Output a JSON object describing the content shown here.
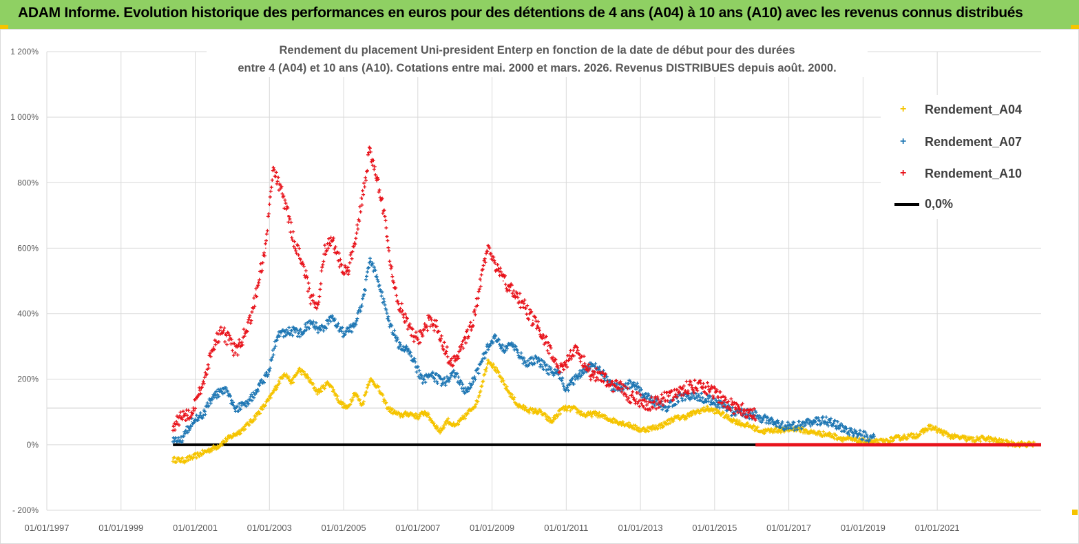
{
  "header": {
    "title": "ADAM Informe. Evolution historique des performances en euros pour des détentions de 4 ans (A04) à 10 ans (A10) avec les revenus connus distribués"
  },
  "colors": {
    "banner": "#8fd063",
    "series_a04": "#f5c400",
    "series_a07": "#1f77b4",
    "series_a10": "#e8141c",
    "zero_line": "#000000"
  },
  "chart_data": {
    "type": "scatter",
    "title_line1": "Rendement du placement Uni-president Enterp  en fonction de la date de début pour des durées",
    "title_line2": "entre 4 (A04) et 10 ans (A10). Cotations entre mai. 2000 et mars. 2026. Revenus DISTRIBUES depuis août. 2000.",
    "xlabel": "",
    "ylabel": "",
    "xlim": [
      1997.0,
      2023.8
    ],
    "ylim": [
      -200,
      1200
    ],
    "yticks": [
      -200,
      0,
      200,
      400,
      600,
      800,
      1000,
      1200
    ],
    "ytick_labels": [
      "- 200%",
      "0%",
      "200%",
      "400%",
      "600%",
      "800%",
      "1 000%",
      "1 200%"
    ],
    "xticks": [
      1997,
      1999,
      2001,
      2003,
      2005,
      2007,
      2009,
      2011,
      2013,
      2015,
      2017,
      2019,
      2021
    ],
    "xtick_labels": [
      "01/01/1997",
      "01/01/1999",
      "01/01/2001",
      "01/01/2003",
      "01/01/2005",
      "01/01/2007",
      "01/01/2009",
      "01/01/2011",
      "01/01/2013",
      "01/01/2015",
      "01/01/2017",
      "01/01/2019",
      "01/01/2021"
    ],
    "extra_hline": 112,
    "legend_position": "top-right",
    "series": [
      {
        "name": "Rendement_A04",
        "marker": "+",
        "color": "#f5c400",
        "x": [
          2000.4,
          2000.7,
          2001.0,
          2001.3,
          2001.6,
          2001.9,
          2002.2,
          2002.5,
          2002.8,
          2003.0,
          2003.2,
          2003.4,
          2003.6,
          2003.8,
          2004.0,
          2004.3,
          2004.6,
          2004.9,
          2005.1,
          2005.3,
          2005.5,
          2005.7,
          2005.9,
          2006.2,
          2006.5,
          2006.8,
          2007.0,
          2007.2,
          2007.4,
          2007.6,
          2007.8,
          2008.0,
          2008.3,
          2008.6,
          2008.9,
          2009.1,
          2009.4,
          2009.7,
          2010.0,
          2010.3,
          2010.6,
          2010.9,
          2011.2,
          2011.5,
          2011.8,
          2012.1,
          2012.4,
          2012.7,
          2013.0,
          2013.3,
          2013.6,
          2013.9,
          2014.2,
          2014.5,
          2014.8,
          2015.1,
          2015.4,
          2015.7,
          2016.0,
          2016.3,
          2016.6,
          2016.9,
          2017.2,
          2017.5,
          2017.8,
          2018.1,
          2018.4,
          2018.7,
          2019.0,
          2019.3,
          2019.6,
          2019.9,
          2020.2,
          2020.5,
          2020.8,
          2021.1,
          2021.4,
          2021.7,
          2022.0,
          2022.3,
          2022.6,
          2022.9,
          2023.2,
          2023.6
        ],
        "y": [
          -45,
          -48,
          -35,
          -20,
          -5,
          20,
          40,
          70,
          110,
          140,
          180,
          220,
          190,
          230,
          210,
          160,
          190,
          130,
          110,
          160,
          120,
          200,
          180,
          110,
          90,
          95,
          85,
          100,
          70,
          40,
          75,
          55,
          90,
          130,
          260,
          230,
          170,
          120,
          105,
          100,
          70,
          110,
          110,
          90,
          95,
          80,
          70,
          60,
          45,
          50,
          60,
          80,
          85,
          100,
          110,
          100,
          80,
          65,
          55,
          40,
          45,
          45,
          50,
          40,
          35,
          30,
          20,
          15,
          10,
          8,
          10,
          20,
          25,
          30,
          55,
          40,
          25,
          20,
          15,
          20,
          12,
          5,
          2,
          1
        ]
      },
      {
        "name": "Rendement_A07",
        "marker": "+",
        "color": "#1f77b4",
        "x": [
          2000.4,
          2000.6,
          2000.9,
          2001.2,
          2001.5,
          2001.8,
          2002.1,
          2002.4,
          2002.7,
          2003.0,
          2003.2,
          2003.5,
          2003.8,
          2004.1,
          2004.4,
          2004.7,
          2005.0,
          2005.3,
          2005.5,
          2005.7,
          2005.9,
          2006.2,
          2006.5,
          2006.8,
          2007.1,
          2007.4,
          2007.7,
          2008.0,
          2008.3,
          2008.6,
          2008.9,
          2009.1,
          2009.3,
          2009.6,
          2009.9,
          2010.2,
          2010.5,
          2010.8,
          2011.0,
          2011.3,
          2011.6,
          2011.9,
          2012.2,
          2012.5,
          2012.8,
          2013.1,
          2013.4,
          2013.7,
          2014.0,
          2014.3,
          2014.6,
          2014.9,
          2015.2,
          2015.5,
          2015.8,
          2016.1,
          2016.4,
          2016.7,
          2017.0,
          2017.3,
          2017.6,
          2017.9,
          2018.2,
          2018.5,
          2018.8,
          2019.1,
          2019.3
        ],
        "y": [
          20,
          10,
          70,
          90,
          150,
          170,
          110,
          130,
          170,
          230,
          330,
          350,
          340,
          370,
          350,
          390,
          340,
          360,
          430,
          560,
          520,
          380,
          300,
          280,
          200,
          210,
          190,
          220,
          160,
          220,
          300,
          330,
          290,
          300,
          250,
          260,
          230,
          220,
          170,
          210,
          240,
          230,
          180,
          170,
          190,
          150,
          130,
          115,
          140,
          150,
          145,
          135,
          120,
          100,
          95,
          90,
          75,
          65,
          55,
          60,
          70,
          75,
          65,
          45,
          35,
          25,
          20
        ]
      },
      {
        "name": "Rendement_A10",
        "marker": "+",
        "color": "#e8141c",
        "x": [
          2000.4,
          2000.6,
          2000.9,
          2001.1,
          2001.3,
          2001.5,
          2001.7,
          2001.9,
          2002.1,
          2002.3,
          2002.5,
          2002.7,
          2002.9,
          2003.1,
          2003.3,
          2003.5,
          2003.7,
          2003.9,
          2004.1,
          2004.3,
          2004.5,
          2004.7,
          2004.9,
          2005.1,
          2005.3,
          2005.5,
          2005.7,
          2005.9,
          2006.1,
          2006.3,
          2006.5,
          2006.7,
          2006.9,
          2007.1,
          2007.3,
          2007.5,
          2007.7,
          2007.9,
          2008.1,
          2008.3,
          2008.5,
          2008.7,
          2008.9,
          2009.1,
          2009.3,
          2009.5,
          2009.7,
          2009.9,
          2010.1,
          2010.3,
          2010.5,
          2010.7,
          2010.9,
          2011.1,
          2011.3,
          2011.5,
          2011.7,
          2011.9,
          2012.1,
          2012.3,
          2012.5,
          2012.7,
          2012.9,
          2013.2,
          2013.5,
          2013.8,
          2014.1,
          2014.4,
          2014.7,
          2015.0,
          2015.3,
          2015.6,
          2015.9,
          2016.1
        ],
        "y": [
          60,
          80,
          100,
          150,
          230,
          300,
          350,
          320,
          280,
          330,
          380,
          500,
          600,
          850,
          780,
          700,
          600,
          560,
          450,
          420,
          600,
          620,
          560,
          520,
          620,
          750,
          900,
          820,
          700,
          520,
          430,
          380,
          330,
          330,
          380,
          360,
          300,
          250,
          280,
          330,
          380,
          500,
          600,
          550,
          500,
          480,
          450,
          420,
          380,
          350,
          300,
          260,
          220,
          280,
          290,
          250,
          210,
          220,
          190,
          180,
          170,
          150,
          140,
          125,
          130,
          150,
          170,
          180,
          175,
          160,
          130,
          110,
          100,
          90
        ]
      },
      {
        "name": "0,0%",
        "marker": "line",
        "color": "#000000",
        "x": [
          2000.4,
          2023.8
        ],
        "y": [
          0,
          0
        ]
      }
    ]
  },
  "overlay": {
    "red_zero_band": {
      "x_start": 2016.1,
      "x_end": 2023.8,
      "y": 0
    }
  }
}
